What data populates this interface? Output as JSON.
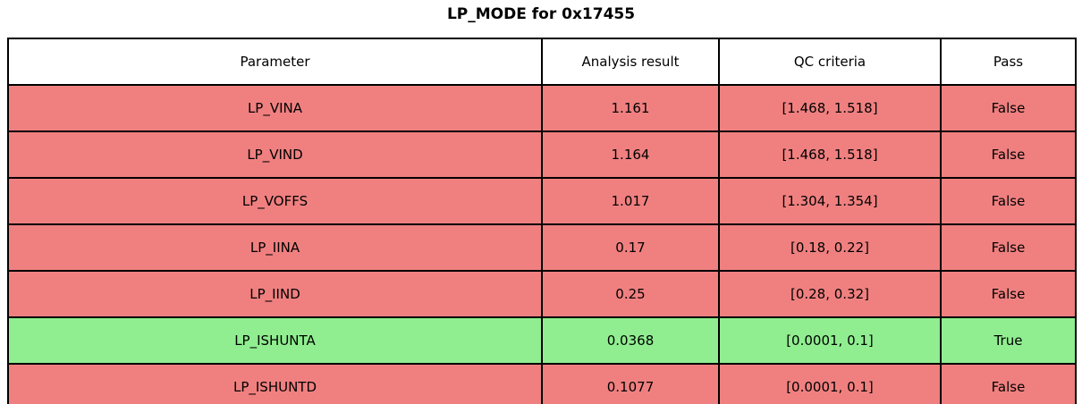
{
  "title": "LP_MODE for 0x17455",
  "colors": {
    "fail_row": "#F08080",
    "pass_row": "#90EE90",
    "header_bg": "#FFFFFF",
    "border": "#000000"
  },
  "table": {
    "headers": {
      "parameter": "Parameter",
      "result": "Analysis result",
      "criteria": "QC criteria",
      "pass": "Pass"
    },
    "rows": [
      {
        "parameter": "LP_VINA",
        "result": "1.161",
        "criteria": "[1.468, 1.518]",
        "pass": "False"
      },
      {
        "parameter": "LP_VIND",
        "result": "1.164",
        "criteria": "[1.468, 1.518]",
        "pass": "False"
      },
      {
        "parameter": "LP_VOFFS",
        "result": "1.017",
        "criteria": "[1.304, 1.354]",
        "pass": "False"
      },
      {
        "parameter": "LP_IINA",
        "result": "0.17",
        "criteria": "[0.18, 0.22]",
        "pass": "False"
      },
      {
        "parameter": "LP_IIND",
        "result": "0.25",
        "criteria": "[0.28, 0.32]",
        "pass": "False"
      },
      {
        "parameter": "LP_ISHUNTA",
        "result": "0.0368",
        "criteria": "[0.0001, 0.1]",
        "pass": "True"
      },
      {
        "parameter": "LP_ISHUNTD",
        "result": "0.1077",
        "criteria": "[0.0001, 0.1]",
        "pass": "False"
      }
    ]
  },
  "chart_data": {
    "type": "table",
    "title": "LP_MODE for 0x17455",
    "columns": [
      "Parameter",
      "Analysis result",
      "QC criteria",
      "Pass"
    ],
    "rows": [
      [
        "LP_VINA",
        1.161,
        "[1.468, 1.518]",
        false
      ],
      [
        "LP_VIND",
        1.164,
        "[1.468, 1.518]",
        false
      ],
      [
        "LP_VOFFS",
        1.017,
        "[1.304, 1.354]",
        false
      ],
      [
        "LP_IINA",
        0.17,
        "[0.18, 0.22]",
        false
      ],
      [
        "LP_IIND",
        0.25,
        "[0.28, 0.32]",
        false
      ],
      [
        "LP_ISHUNTA",
        0.0368,
        "[0.0001, 0.1]",
        true
      ],
      [
        "LP_ISHUNTD",
        0.1077,
        "[0.0001, 0.1]",
        false
      ]
    ],
    "layout": {
      "row_color_fail": "#F08080",
      "row_color_pass": "#90EE90",
      "header_color": "#FFFFFF",
      "grid": true
    }
  }
}
